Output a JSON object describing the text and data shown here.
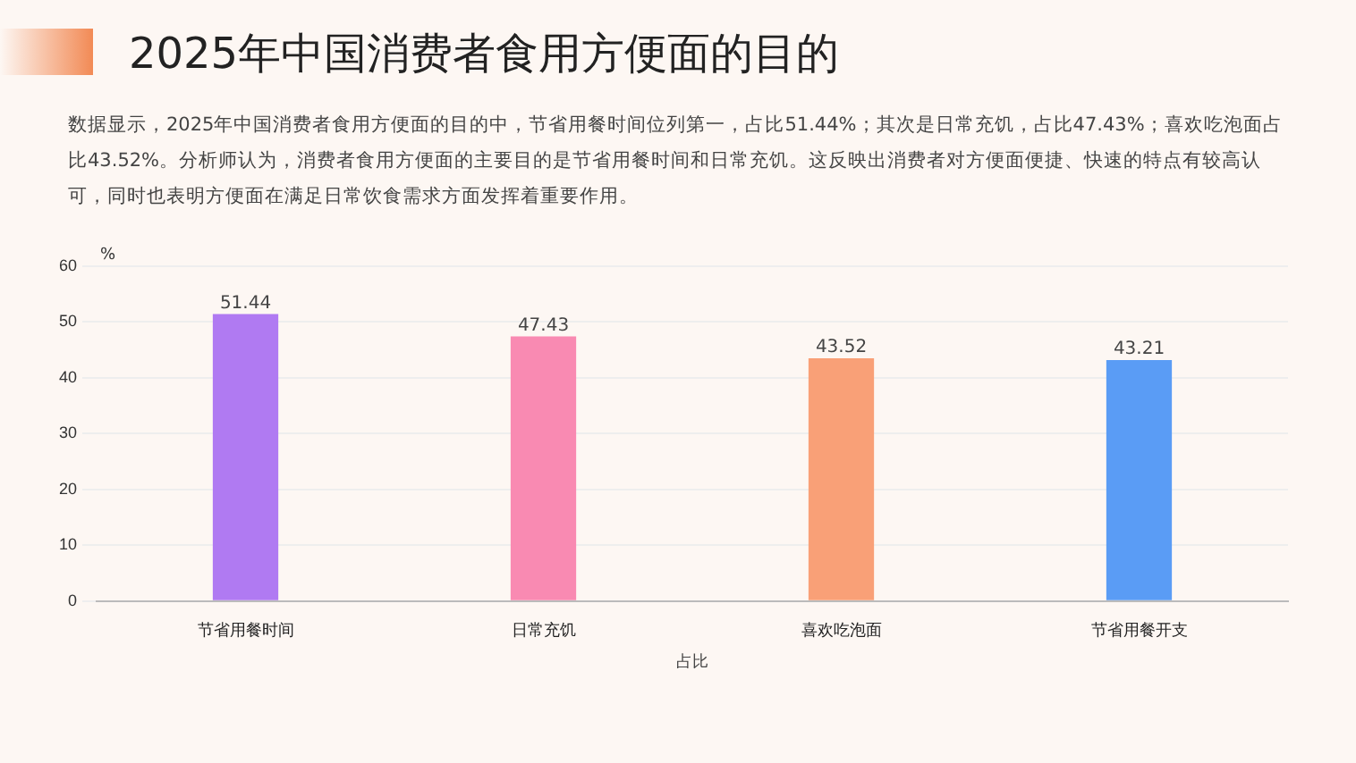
{
  "chart_data": {
    "type": "bar",
    "title": "2025年中国消费者食用方便面的目的",
    "subtitle": "数据显示，2025年中国消费者食用方便面的目的中，节省用餐时间位列第一，占比51.44%；其次是日常充饥，占比47.43%；喜欢吃泡面占比43.52%。分析师认为，消费者食用方便面的主要目的是节省用餐时间和日常充饥。这反映出消费者对方便面便捷、快速的特点有较高认可，同时也表明方便面在满足日常饮食需求方面发挥着重要作用。",
    "categories": [
      "节省用餐时间",
      "日常充饥",
      "喜欢吃泡面",
      "节省用餐开支"
    ],
    "values": [
      51.44,
      47.43,
      43.52,
      43.21
    ],
    "colors": [
      "#b07af2",
      "#f98ab2",
      "#f9a077",
      "#5a9cf5"
    ],
    "xlabel": "占比",
    "ylabel": "%",
    "ylim": [
      0,
      60
    ],
    "yticks": [
      0,
      10,
      20,
      30,
      40,
      50,
      60
    ],
    "grid": "y",
    "data_labels": true
  }
}
